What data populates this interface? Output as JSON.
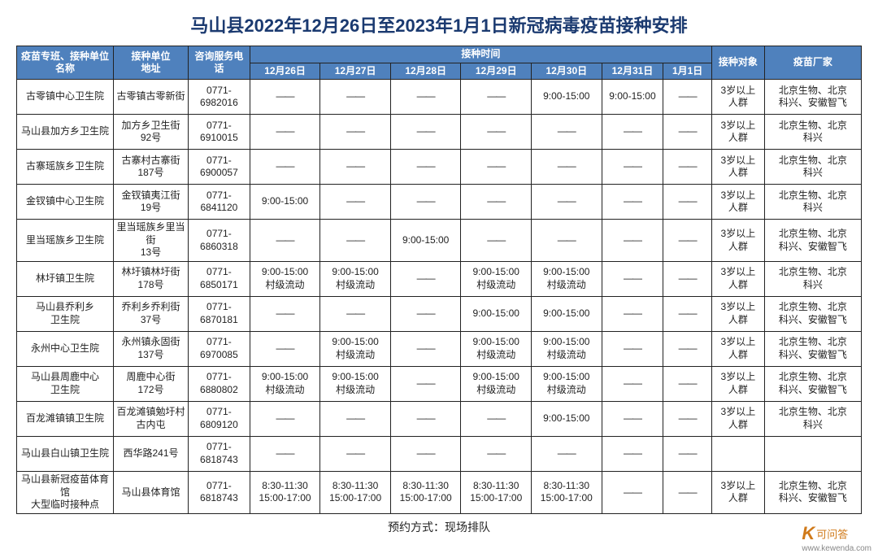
{
  "title": "马山县2022年12月26日至2023年1月1日新冠病毒疫苗接种安排",
  "footer": "预约方式：现场排队",
  "dash": "——",
  "watermark": {
    "brand_cn": "可问答",
    "url": "www.kewenda.com"
  },
  "table": {
    "header": {
      "c1": "疫苗专班、接种单位名称",
      "c2": "接种单位\n地址",
      "c3": "咨询服务电话",
      "time_group": "接种时间",
      "dates": [
        "12月26日",
        "12月27日",
        "12月28日",
        "12月29日",
        "12月30日",
        "12月31日",
        "1月1日"
      ],
      "c11": "接种对象",
      "c12": "疫苗厂家"
    },
    "col_widths": [
      "110",
      "85",
      "70",
      "80",
      "80",
      "80",
      "80",
      "80",
      "70",
      "55",
      "60",
      "110"
    ],
    "header_bg": "#4f81bd",
    "header_color": "#ffffff",
    "border_color": "#222222",
    "rows": [
      {
        "name": "古零镇中心卫生院",
        "addr": "古零镇古零新街",
        "tel": "0771-\n6982016",
        "d": [
          "",
          "",
          "",
          "",
          "9:00-15:00",
          "9:00-15:00",
          ""
        ],
        "target": "3岁以上\n人群",
        "maker": "北京生物、北京\n科兴、安徽智飞"
      },
      {
        "name": "马山县加方乡卫生院",
        "addr": "加方乡卫生街\n92号",
        "tel": "0771-\n6910015",
        "d": [
          "",
          "",
          "",
          "",
          "",
          "",
          ""
        ],
        "target": "3岁以上\n人群",
        "maker": "北京生物、北京\n科兴"
      },
      {
        "name": "古寨瑶族乡卫生院",
        "addr": "古寨村古寨街\n187号",
        "tel": "0771-\n6900057",
        "d": [
          "",
          "",
          "",
          "",
          "",
          "",
          ""
        ],
        "target": "3岁以上\n人群",
        "maker": "北京生物、北京\n科兴"
      },
      {
        "name": "金钗镇中心卫生院",
        "addr": "金钗镇夷江街\n19号",
        "tel": "0771-\n6841120",
        "d": [
          "9:00-15:00",
          "",
          "",
          "",
          "",
          "",
          ""
        ],
        "target": "3岁以上\n人群",
        "maker": "北京生物、北京\n科兴"
      },
      {
        "name": "里当瑶族乡卫生院",
        "addr": "里当瑶族乡里当街\n13号",
        "tel": "0771-\n6860318",
        "d": [
          "",
          "",
          "9:00-15:00",
          "",
          "",
          "",
          ""
        ],
        "target": "3岁以上\n人群",
        "maker": "北京生物、北京\n科兴、安徽智飞"
      },
      {
        "name": "林圩镇卫生院",
        "addr": "林圩镇林圩街\n178号",
        "tel": "0771-\n6850171",
        "d": [
          "9:00-15:00\n村级流动",
          "9:00-15:00\n村级流动",
          "",
          "9:00-15:00\n村级流动",
          "9:00-15:00\n村级流动",
          "",
          ""
        ],
        "target": "3岁以上\n人群",
        "maker": "北京生物、北京\n科兴"
      },
      {
        "name": "马山县乔利乡\n卫生院",
        "addr": "乔利乡乔利街\n37号",
        "tel": "0771-\n6870181",
        "d": [
          "",
          "",
          "",
          "9:00-15:00",
          "9:00-15:00",
          "",
          ""
        ],
        "target": "3岁以上\n人群",
        "maker": "北京生物、北京\n科兴、安徽智飞"
      },
      {
        "name": "永州中心卫生院",
        "addr": "永州镇永固街\n137号",
        "tel": "0771-\n6970085",
        "d": [
          "",
          "9:00-15:00\n村级流动",
          "",
          "9:00-15:00\n村级流动",
          "9:00-15:00\n村级流动",
          "",
          ""
        ],
        "target": "3岁以上\n人群",
        "maker": "北京生物、北京\n科兴、安徽智飞"
      },
      {
        "name": "马山县周鹿中心\n卫生院",
        "addr": "周鹿中心街\n172号",
        "tel": "0771-\n6880802",
        "d": [
          "9:00-15:00\n村级流动",
          "9:00-15:00\n村级流动",
          "",
          "9:00-15:00\n村级流动",
          "9:00-15:00\n村级流动",
          "",
          ""
        ],
        "target": "3岁以上\n人群",
        "maker": "北京生物、北京\n科兴、安徽智飞"
      },
      {
        "name": "百龙滩镇镇卫生院",
        "addr": "百龙滩镇勉圩村\n古内屯",
        "tel": "0771-\n6809120",
        "d": [
          "",
          "",
          "",
          "",
          "9:00-15:00",
          "",
          ""
        ],
        "target": "3岁以上\n人群",
        "maker": "北京生物、北京\n科兴"
      },
      {
        "name": "马山县白山镇卫生院",
        "addr": "西华路241号",
        "tel": "0771-\n6818743",
        "d": [
          "",
          "",
          "",
          "",
          "",
          "",
          ""
        ],
        "target": "",
        "maker": ""
      },
      {
        "name": "马山县新冠疫苗体育馆\n大型临时接种点",
        "addr": "马山县体育馆",
        "tel": "0771-\n6818743",
        "d": [
          "8:30-11:30\n15:00-17:00",
          "8:30-11:30\n15:00-17:00",
          "8:30-11:30\n15:00-17:00",
          "8:30-11:30\n15:00-17:00",
          "8:30-11:30\n15:00-17:00",
          "",
          ""
        ],
        "target": "3岁以上\n人群",
        "maker": "北京生物、北京\n科兴、安徽智飞"
      }
    ]
  }
}
